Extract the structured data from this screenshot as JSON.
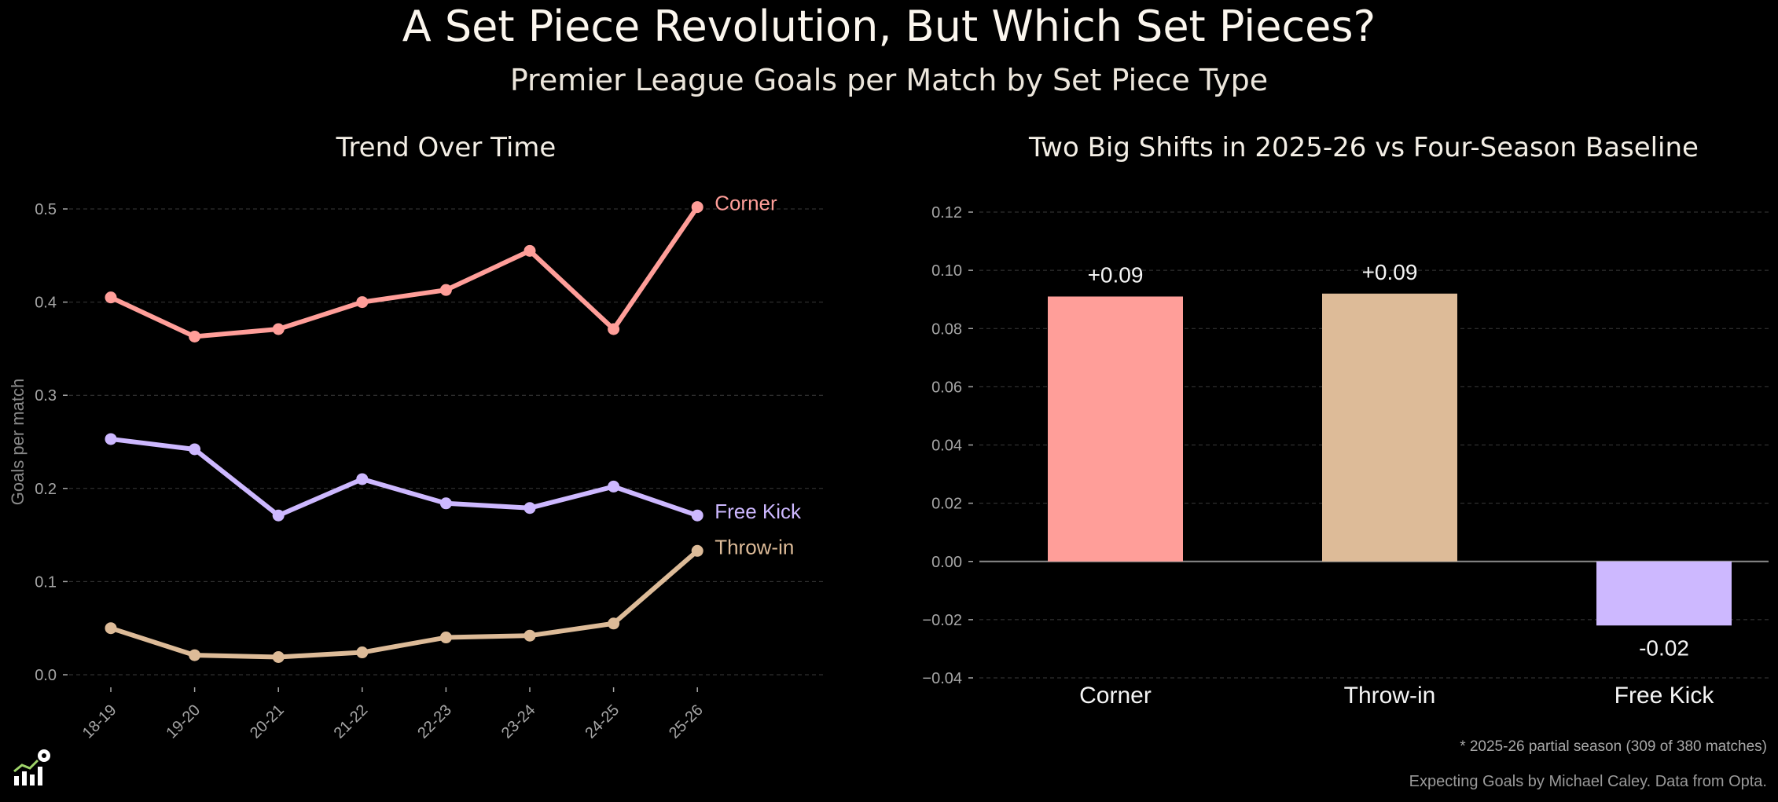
{
  "title": "A Set Piece Revolution, But Which Set Pieces?",
  "subtitle": "Premier League Goals per Match by Set Piece Type",
  "footnote": "* 2025-26 partial season (309 of 380 matches)",
  "credit": "Expecting Goals by Michael Caley. Data from Opta.",
  "logo_icon": "chart-soccer-ball-logo-icon",
  "chart_data": [
    {
      "type": "line",
      "title": "Trend Over Time",
      "xlabel": "",
      "ylabel": "Goals per match",
      "x": [
        "18-19",
        "19-20",
        "20-21",
        "21-22",
        "22-23",
        "23-24",
        "24-25",
        "25-26"
      ],
      "ylim": [
        0.0,
        0.5
      ],
      "yticks": [
        0.0,
        0.1,
        0.2,
        0.3,
        0.4,
        0.5
      ],
      "grid": true,
      "series": [
        {
          "name": "Corner",
          "color": "#ff9e99",
          "values": [
            0.405,
            0.363,
            0.371,
            0.4,
            0.413,
            0.455,
            0.371,
            0.502
          ]
        },
        {
          "name": "Free Kick",
          "color": "#cdb8ff",
          "values": [
            0.253,
            0.242,
            0.171,
            0.21,
            0.184,
            0.179,
            0.202,
            0.171
          ]
        },
        {
          "name": "Throw-in",
          "color": "#ddbb98",
          "values": [
            0.05,
            0.021,
            0.019,
            0.024,
            0.04,
            0.042,
            0.055,
            0.133
          ]
        }
      ]
    },
    {
      "type": "bar",
      "title": "Two Big Shifts in 2025-26 vs Four-Season Baseline",
      "xlabel": "",
      "ylabel": "",
      "categories": [
        "Corner",
        "Throw-in",
        "Free Kick"
      ],
      "values": [
        0.091,
        0.092,
        -0.022
      ],
      "value_labels": [
        "+0.09",
        "+0.09",
        "-0.02"
      ],
      "colors": [
        "#ff9e99",
        "#ddbb98",
        "#cdb8ff"
      ],
      "ylim": [
        -0.04,
        0.12
      ],
      "yticks": [
        "0.12",
        "0.10",
        "0.08",
        "0.06",
        "0.04",
        "0.02",
        "0.00",
        "−0.02",
        "−0.04"
      ],
      "ytick_values": [
        0.12,
        0.1,
        0.08,
        0.06,
        0.04,
        0.02,
        0.0,
        -0.02,
        -0.04
      ],
      "grid": true
    }
  ]
}
